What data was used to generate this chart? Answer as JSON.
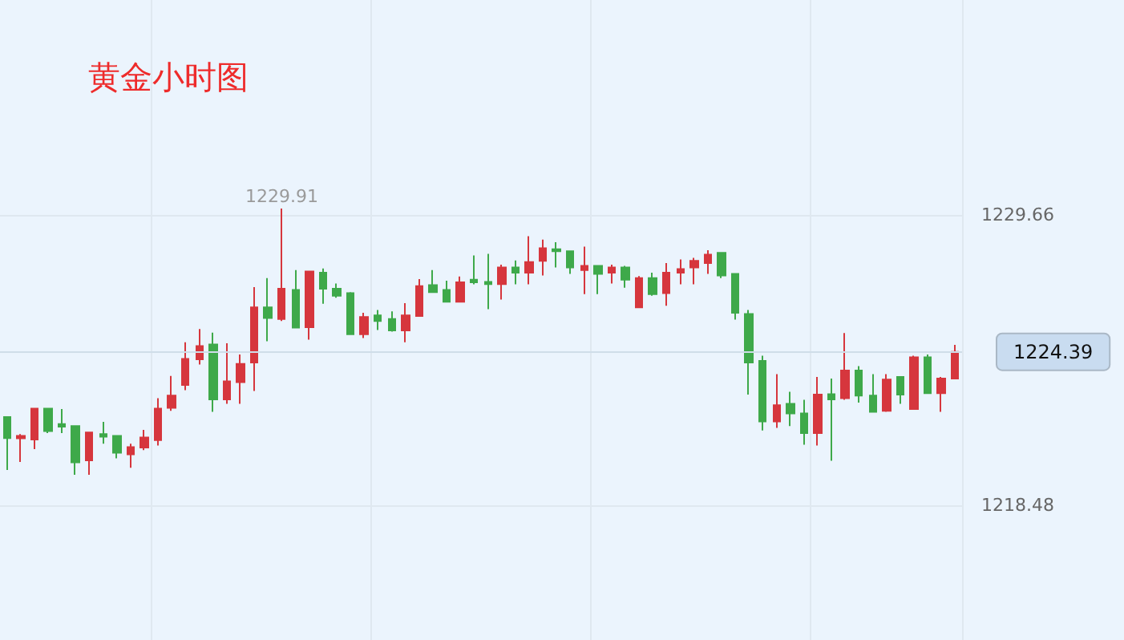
{
  "chart_data": {
    "type": "candlestick",
    "title": "黄金小时图",
    "categories": [
      null,
      null,
      null,
      null,
      null,
      null,
      null,
      null,
      null,
      null,
      null,
      null,
      null,
      null,
      null,
      null,
      null,
      null,
      null,
      null,
      null,
      null,
      null,
      null,
      null,
      null,
      null,
      null,
      null,
      null,
      null,
      null,
      null,
      null,
      null,
      null,
      null,
      null,
      null,
      null,
      null,
      null,
      null,
      null,
      null,
      null,
      null,
      null,
      null,
      null,
      null,
      null,
      null,
      null,
      null,
      null,
      null,
      null,
      null,
      null,
      null,
      null,
      null,
      null,
      null,
      null,
      null,
      null,
      null,
      null
    ],
    "ohlc": [
      [
        1221.88,
        1221.88,
        1219.84,
        1221.07
      ],
      [
        1221.06,
        1221.22,
        1220.15,
        1221.15
      ],
      [
        1221.01,
        1222.2,
        1220.64,
        1222.2
      ],
      [
        1222.2,
        1222.2,
        1221.26,
        1221.34
      ],
      [
        1221.61,
        1222.19,
        1221.26,
        1221.51
      ],
      [
        1221.53,
        1221.53,
        1219.65,
        1220.13
      ],
      [
        1220.21,
        1221.28,
        1219.65,
        1221.28
      ],
      [
        1221.22,
        1221.69,
        1220.85,
        1221.12
      ],
      [
        1221.15,
        1221.15,
        1220.29,
        1220.5
      ],
      [
        1220.44,
        1220.85,
        1219.92,
        1220.72
      ],
      [
        1220.7,
        1221.38,
        1220.6,
        1221.09
      ],
      [
        1220.99,
        1222.6,
        1220.78,
        1222.2
      ],
      [
        1222.23,
        1223.46,
        1222.12,
        1222.7
      ],
      [
        1223.11,
        1224.76,
        1222.91,
        1224.12
      ],
      [
        1224.1,
        1225.27,
        1223.9,
        1224.61
      ],
      [
        1224.67,
        1225.13,
        1222.08,
        1222.56
      ],
      [
        1222.56,
        1224.72,
        1222.39,
        1223.25
      ],
      [
        1223.22,
        1224.29,
        1222.39,
        1223.92
      ],
      [
        1223.98,
        1226.88,
        1222.88,
        1226.1
      ],
      [
        1226.1,
        1227.23,
        1224.8,
        1225.69
      ],
      [
        1225.65,
        1229.91,
        1225.58,
        1226.82
      ],
      [
        1226.77,
        1227.54,
        1225.32,
        1225.32
      ],
      [
        1225.34,
        1227.48,
        1224.86,
        1227.48
      ],
      [
        1227.44,
        1227.6,
        1226.24,
        1226.82
      ],
      [
        1226.82,
        1227.02,
        1226.47,
        1226.55
      ],
      [
        1226.65,
        1226.69,
        1225.07,
        1225.07
      ],
      [
        1225.07,
        1225.89,
        1224.92,
        1225.73
      ],
      [
        1225.79,
        1226.0,
        1225.23,
        1225.58
      ],
      [
        1225.65,
        1225.95,
        1225.17,
        1225.21
      ],
      [
        1225.21,
        1226.26,
        1224.76,
        1225.79
      ],
      [
        1225.77,
        1227.19,
        1225.77,
        1226.92
      ],
      [
        1226.96,
        1227.54,
        1226.69,
        1226.69
      ],
      [
        1226.77,
        1227.13,
        1226.32,
        1226.32
      ],
      [
        1226.32,
        1227.29,
        1226.32,
        1227.07
      ],
      [
        1227.17,
        1228.1,
        1226.99,
        1227.07
      ],
      [
        1227.08,
        1228.16,
        1226.03,
        1227.0
      ],
      [
        1227.0,
        1227.75,
        1226.4,
        1227.64
      ],
      [
        1227.64,
        1227.91,
        1226.99,
        1227.44
      ],
      [
        1227.44,
        1228.84,
        1226.99,
        1227.85
      ],
      [
        1227.89,
        1228.71,
        1227.33,
        1228.38
      ],
      [
        1228.34,
        1228.61,
        1227.64,
        1228.26
      ],
      [
        1228.26,
        1228.26,
        1227.39,
        1227.64
      ],
      [
        1227.54,
        1228.44,
        1226.61,
        1227.7
      ],
      [
        1227.7,
        1227.7,
        1226.61,
        1227.39
      ],
      [
        1227.44,
        1227.75,
        1227.02,
        1227.64
      ],
      [
        1227.64,
        1227.7,
        1226.86,
        1227.17
      ],
      [
        1226.1,
        1227.31,
        1226.1,
        1227.23
      ],
      [
        1227.23,
        1227.44,
        1226.55,
        1226.61
      ],
      [
        1226.65,
        1227.81,
        1226.16,
        1227.44
      ],
      [
        1227.44,
        1227.95,
        1226.99,
        1227.58
      ],
      [
        1227.64,
        1228.01,
        1226.99,
        1227.89
      ],
      [
        1227.81,
        1228.3,
        1227.39,
        1228.13
      ],
      [
        1228.2,
        1228.2,
        1227.23,
        1227.33
      ],
      [
        1227.39,
        1227.39,
        1225.63,
        1225.89
      ],
      [
        1225.85,
        1226.0,
        1222.74,
        1223.98
      ],
      [
        1224.04,
        1224.24,
        1221.36,
        1221.71
      ],
      [
        1221.71,
        1223.53,
        1221.46,
        1222.33
      ],
      [
        1222.39,
        1222.85,
        1221.53,
        1222.02
      ],
      [
        1222.02,
        1222.54,
        1220.81,
        1221.26
      ],
      [
        1221.26,
        1223.42,
        1220.78,
        1222.74
      ],
      [
        1222.76,
        1223.36,
        1220.19,
        1222.56
      ],
      [
        1222.6,
        1225.11,
        1222.54,
        1223.67
      ],
      [
        1223.67,
        1223.84,
        1222.43,
        1222.7
      ],
      [
        1222.7,
        1223.53,
        1222.08,
        1222.08
      ],
      [
        1222.12,
        1223.53,
        1222.08,
        1223.32
      ],
      [
        1223.42,
        1223.42,
        1222.39,
        1222.74
      ],
      [
        1222.19,
        1224.24,
        1222.19,
        1224.18
      ],
      [
        1224.18,
        1224.29,
        1222.8,
        1222.8
      ],
      [
        1222.8,
        1223.42,
        1222.08,
        1223.36
      ],
      [
        1223.36,
        1224.66,
        1223.36,
        1224.39
      ]
    ],
    "colors": [
      "#3ea94a",
      "#d6363d",
      "#d6363d",
      "#3ea94a",
      "#3ea94a",
      "#3ea94a",
      "#d6363d",
      "#3ea94a",
      "#3ea94a",
      "#d6363d",
      "#d6363d",
      "#d6363d",
      "#d6363d",
      "#d6363d",
      "#d6363d",
      "#3ea94a",
      "#d6363d",
      "#d6363d",
      "#d6363d",
      "#3ea94a",
      "#d6363d",
      "#3ea94a",
      "#d6363d",
      "#3ea94a",
      "#3ea94a",
      "#3ea94a",
      "#d6363d",
      "#3ea94a",
      "#3ea94a",
      "#d6363d",
      "#d6363d",
      "#3ea94a",
      "#3ea94a",
      "#d6363d",
      "#3ea94a",
      "#3ea94a",
      "#d6363d",
      "#3ea94a",
      "#d6363d",
      "#d6363d",
      "#3ea94a",
      "#3ea94a",
      "#d6363d",
      "#3ea94a",
      "#d6363d",
      "#3ea94a",
      "#d6363d",
      "#3ea94a",
      "#d6363d",
      "#d6363d",
      "#d6363d",
      "#d6363d",
      "#3ea94a",
      "#3ea94a",
      "#3ea94a",
      "#3ea94a",
      "#d6363d",
      "#3ea94a",
      "#3ea94a",
      "#d6363d",
      "#3ea94a",
      "#d6363d",
      "#3ea94a",
      "#3ea94a",
      "#d6363d",
      "#3ea94a",
      "#d6363d",
      "#3ea94a",
      "#d6363d",
      "#d6363d"
    ],
    "ylim": [
      1213.29,
      1237.94
    ],
    "yticks": [
      1218.48,
      1229.66
    ],
    "grid": true,
    "ref_lines": [
      {
        "axis": "y",
        "value": 1224.39,
        "label": "1224.39"
      }
    ],
    "annotations": [
      "1229.91"
    ]
  }
}
